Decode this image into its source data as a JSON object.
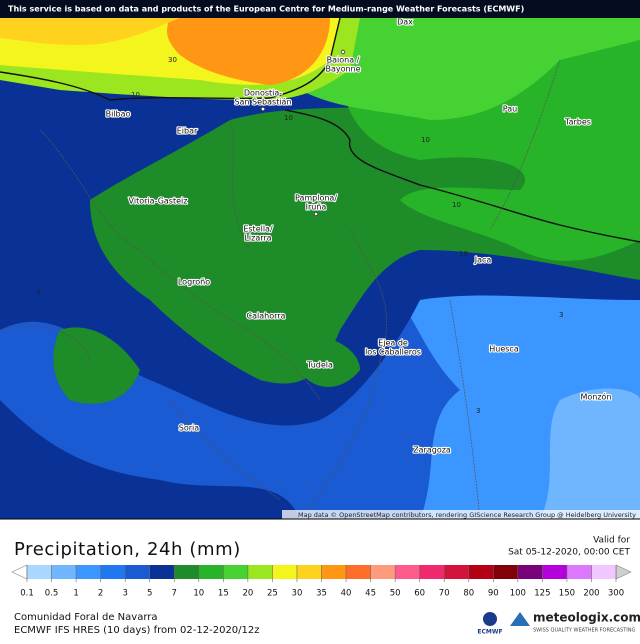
{
  "banner": "This service is based on data and products of the European Centre for Medium-range Weather Forecasts (ECMWF)",
  "attribution": "Map data © OpenStreetMap contributors, rendering GIScience Research Group @ Heidelberg University",
  "map": {
    "cities": {
      "dax": "Dax",
      "bayonne": [
        "Baiona /",
        "Bayonne"
      ],
      "sansebastian": [
        "Donostia-",
        "San Sebastián"
      ],
      "bilbao": "Bilbao",
      "eibar": "Eibar",
      "pau": "Pau",
      "tarbes": "Tarbes",
      "vitoria": "Vitoria-Gasteiz",
      "pamplona": [
        "Pamplona/",
        "Iruña"
      ],
      "estella": [
        "Estella/",
        "Lizarra"
      ],
      "jaca": "Jaca",
      "logrono": "Logroño",
      "calahorra": "Calahorra",
      "ejea": [
        "Ejea de",
        "los Caballeros"
      ],
      "huesca": "Huesca",
      "tudela": "Tudela",
      "monzon": "Monzón",
      "soria": "Soria",
      "zaragoza": "Zaragoza"
    },
    "contour_labels": [
      30,
      10,
      10,
      10,
      10,
      10,
      3,
      3,
      3
    ]
  },
  "legend": {
    "title": "Precipitation, 24h (mm)",
    "valid_label": "Valid for",
    "valid_time": "Sat 05-12-2020, 00:00 CET",
    "ticks": [
      0.1,
      0.5,
      1,
      2,
      3,
      5,
      7,
      10,
      15,
      20,
      25,
      30,
      35,
      40,
      45,
      50,
      60,
      70,
      80,
      90,
      100,
      125,
      150,
      200,
      300
    ],
    "colors": [
      "#a8d8ff",
      "#6fb6ff",
      "#3c96ff",
      "#1f78f0",
      "#1a5ad2",
      "#0a3296",
      "#1e8c28",
      "#28b428",
      "#46d232",
      "#9be61e",
      "#f5f51e",
      "#ffd21e",
      "#ff9614",
      "#ff6e28",
      "#ff9b7d",
      "#ff5a8c",
      "#f0286e",
      "#d2143c",
      "#b40014",
      "#82000a",
      "#780078",
      "#b400dc",
      "#dc78ff",
      "#f0c8ff"
    ]
  },
  "footer": {
    "region": "Comunidad Foral de Navarra",
    "model": "ECMWF IFS HRES (10 days) from 02-12-2020/12z",
    "ecmwf": "ECMWF",
    "brand": "meteologix.com",
    "tagline": "SWISS QUALITY WEATHER FORECASTING"
  }
}
